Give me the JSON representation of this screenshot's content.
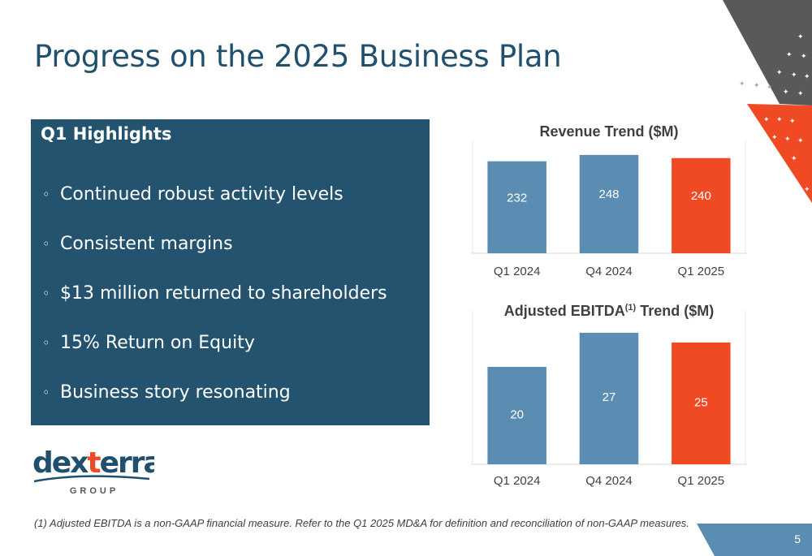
{
  "slide": {
    "title": "Progress on the 2025 Business Plan",
    "page_number": "5",
    "footnote": "(1) Adjusted EBITDA is a non-GAAP financial measure. Refer to the Q1 2025 MD&A for definition and reconciliation of non-GAAP measures."
  },
  "highlights": {
    "title": "Q1 Highlights",
    "bullet": "◦",
    "items": [
      "Continued robust activity levels",
      "Consistent margins",
      "$13 million returned to shareholders",
      "15% Return on Equity",
      "Business story resonating"
    ]
  },
  "logo": {
    "wordmark_part1": "dex",
    "wordmark_part2": "t",
    "wordmark_part3": "erra",
    "subtext": "GROUP"
  },
  "colors": {
    "brand_navy": "#23536f",
    "bar_blue": "#5b8db2",
    "bar_orange": "#ef4a24",
    "deco_grey": "#595959"
  },
  "chart_data": [
    {
      "type": "bar",
      "title": "Revenue Trend ($M)",
      "categories": [
        "Q1 2024",
        "Q4 2024",
        "Q1 2025"
      ],
      "values": [
        232,
        248,
        240
      ],
      "bar_colors": [
        "#5b8db2",
        "#5b8db2",
        "#ef4a24"
      ],
      "grid": false,
      "legend": "none"
    },
    {
      "type": "bar",
      "title": "Adjusted EBITDA",
      "title_superscript": "(1)",
      "title_suffix": " Trend ($M)",
      "categories": [
        "Q1 2024",
        "Q4 2024",
        "Q1 2025"
      ],
      "values": [
        20,
        27,
        25
      ],
      "bar_colors": [
        "#5b8db2",
        "#5b8db2",
        "#ef4a24"
      ],
      "grid": false,
      "legend": "none"
    }
  ]
}
